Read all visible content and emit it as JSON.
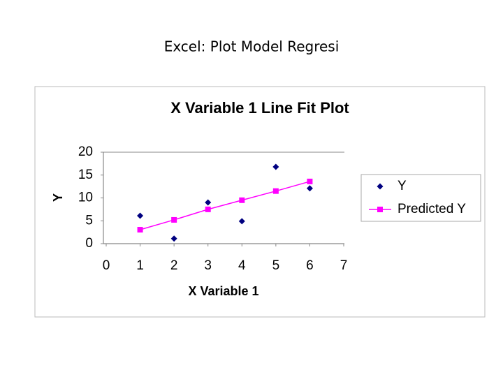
{
  "slide_title": "Excel: Plot Model Regresi",
  "chart_data": {
    "type": "scatter-line",
    "title": "X Variable 1 Line Fit  Plot",
    "x_label": "X Variable 1",
    "y_label": "Y",
    "x": [
      1,
      2,
      3,
      4,
      5,
      6
    ],
    "series": [
      {
        "name": "Y",
        "color": "#000080",
        "marker": "diamond",
        "line": false,
        "values": [
          6.1,
          1.1,
          9.0,
          4.9,
          16.8,
          12.1
        ]
      },
      {
        "name": "Predicted Y",
        "color": "#ff00ff",
        "marker": "square",
        "line": true,
        "values": [
          3.05,
          5.2,
          7.5,
          9.5,
          11.5,
          13.6
        ]
      }
    ],
    "xlim": [
      0,
      7
    ],
    "xticks": [
      0,
      1,
      2,
      3,
      4,
      5,
      6,
      7
    ],
    "ylim": [
      0,
      20
    ],
    "yticks": [
      0,
      5,
      10,
      15,
      20
    ],
    "grid": false,
    "legend": "right"
  }
}
